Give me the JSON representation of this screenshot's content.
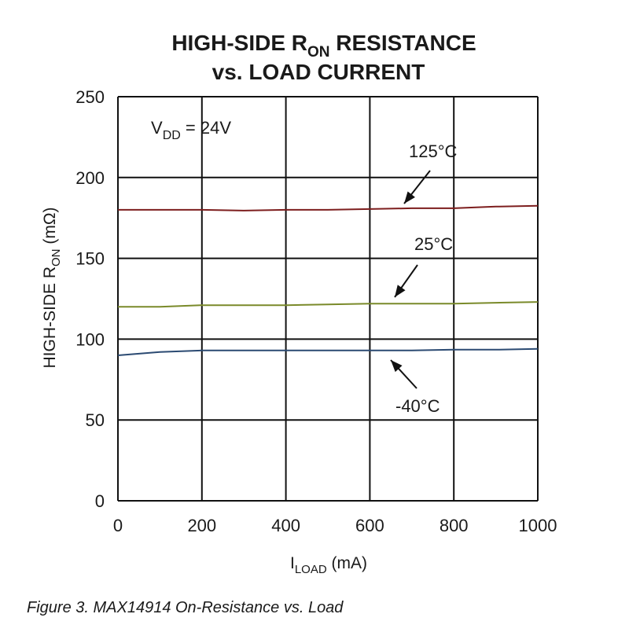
{
  "caption": "Figure 3. MAX14914 On-Resistance vs. Load",
  "chart_data": {
    "type": "line",
    "title": {
      "line1_prefix": "HIGH-SIDE R",
      "line1_sub": "ON",
      "line1_suffix": " RESISTANCE",
      "line2": "vs. LOAD CURRENT"
    },
    "xlabel": {
      "main": "I",
      "sub": "LOAD",
      "suffix": " (mA)"
    },
    "ylabel": {
      "main": "HIGH-SIDE R",
      "sub": "ON",
      "suffix": " (mΩ)"
    },
    "xlim": [
      0,
      1000
    ],
    "ylim": [
      0,
      250
    ],
    "xticks": [
      0,
      200,
      400,
      600,
      800,
      1000
    ],
    "yticks": [
      0,
      50,
      100,
      150,
      200,
      250
    ],
    "grid": true,
    "condition": {
      "main": "V",
      "sub": "DD",
      "suffix": " = 24V"
    },
    "series": [
      {
        "name": "125°C",
        "color": "#7d1e1e",
        "x": [
          0,
          100,
          200,
          300,
          400,
          500,
          600,
          700,
          800,
          900,
          1000
        ],
        "y": [
          180,
          180,
          180,
          179.5,
          180,
          180,
          180.5,
          181,
          181,
          182,
          182.5
        ]
      },
      {
        "name": "25°C",
        "color": "#7a8a2a",
        "x": [
          0,
          100,
          200,
          300,
          400,
          500,
          600,
          700,
          800,
          900,
          1000
        ],
        "y": [
          120,
          120,
          121,
          121,
          121,
          121.5,
          122,
          122,
          122,
          122.5,
          123
        ]
      },
      {
        "name": "-40°C",
        "color": "#2b4a72",
        "x": [
          0,
          100,
          200,
          300,
          400,
          500,
          600,
          700,
          800,
          900,
          1000
        ],
        "y": [
          90,
          92,
          93,
          93,
          93,
          93,
          93,
          93,
          93.5,
          93.5,
          94
        ]
      }
    ]
  }
}
